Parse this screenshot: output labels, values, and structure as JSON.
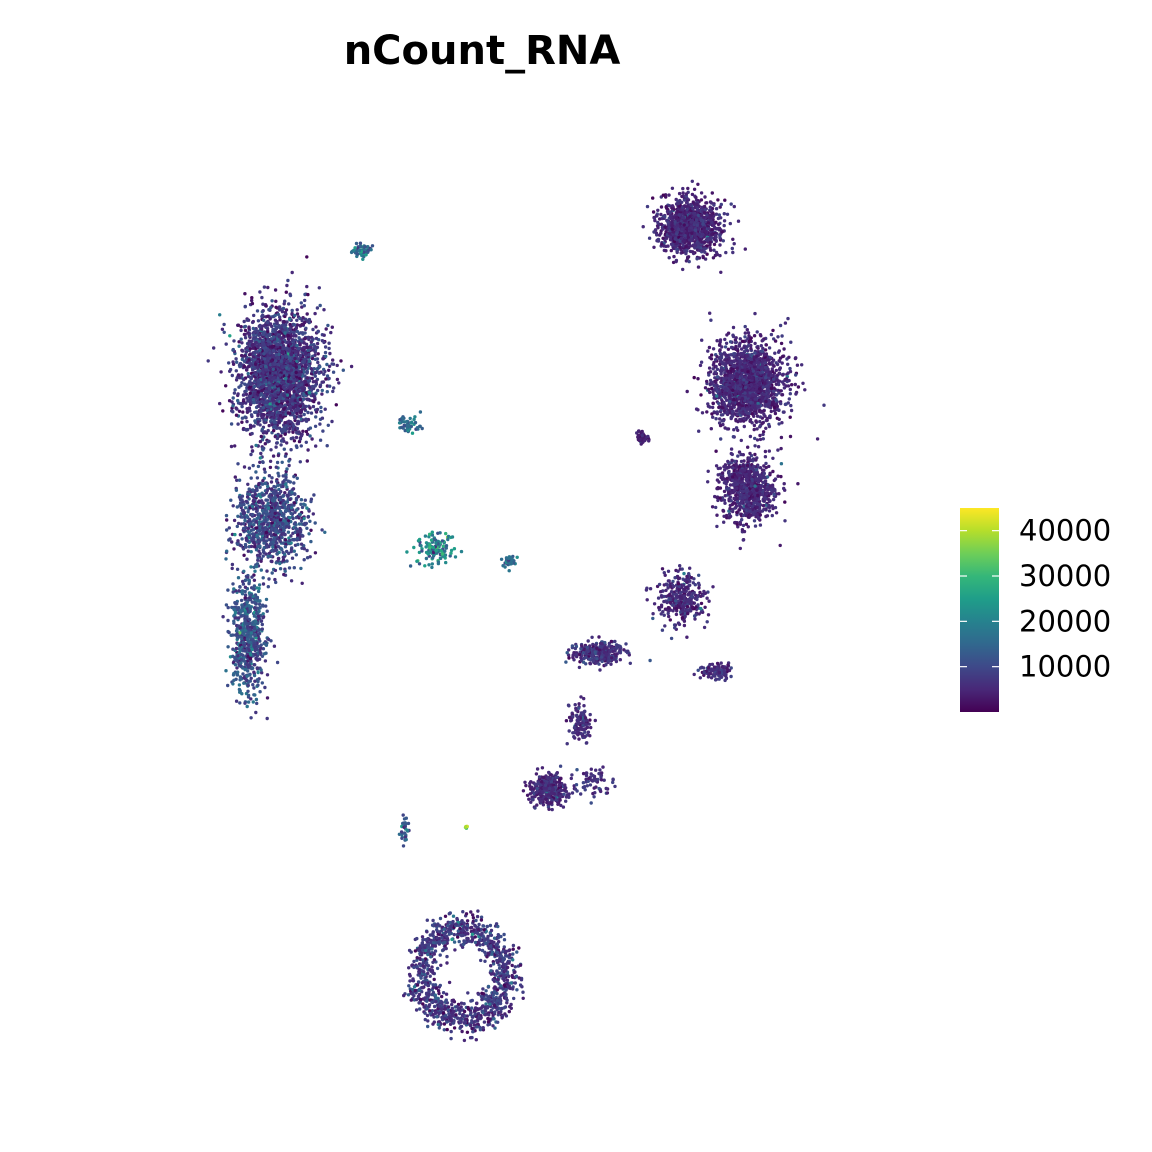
{
  "chart_data": {
    "type": "scatter",
    "title": "nCount_RNA",
    "xlabel": "",
    "ylabel": "",
    "axes_visible": false,
    "grid": false,
    "legend_placement": "right",
    "colorbar": {
      "palette": "viridis",
      "colors": [
        "#440154",
        "#482878",
        "#3e4989",
        "#31688e",
        "#26828e",
        "#1f9e89",
        "#35b779",
        "#6ece58",
        "#b5de2b",
        "#fde725"
      ],
      "range": [
        0,
        45000
      ],
      "ticks": [
        10000,
        20000,
        30000,
        40000
      ],
      "tick_labels": [
        "10000",
        "20000",
        "30000",
        "40000"
      ]
    },
    "xlim": [
      -10,
      10
    ],
    "ylim": [
      -10,
      10
    ],
    "clusters": [
      {
        "id": "left-upper",
        "cx": -5.4,
        "cy": 5.1,
        "sx": 0.95,
        "sy": 1.25,
        "n": 2600,
        "value_mean": 7000,
        "value_sd": 3500
      },
      {
        "id": "left-middle",
        "cx": -5.6,
        "cy": 1.9,
        "sx": 0.8,
        "sy": 0.9,
        "n": 900,
        "value_mean": 9500,
        "value_sd": 4000
      },
      {
        "id": "left-tail",
        "cx": -6.2,
        "cy": -0.6,
        "sx": 0.4,
        "sy": 1.2,
        "n": 650,
        "value_mean": 11500,
        "value_sd": 4000
      },
      {
        "id": "left-top-knob",
        "cx": -3.3,
        "cy": 7.8,
        "sx": 0.25,
        "sy": 0.12,
        "n": 50,
        "value_mean": 15000,
        "value_sd": 4500
      },
      {
        "id": "mid-small-a",
        "cx": -2.1,
        "cy": 4.0,
        "sx": 0.25,
        "sy": 0.2,
        "n": 45,
        "value_mean": 16000,
        "value_sd": 4500
      },
      {
        "id": "mid-small-b",
        "cx": -1.4,
        "cy": 1.3,
        "sx": 0.45,
        "sy": 0.35,
        "n": 130,
        "value_mean": 19500,
        "value_sd": 5500
      },
      {
        "id": "mid-small-c",
        "cx": 0.5,
        "cy": 1.0,
        "sx": 0.15,
        "sy": 0.12,
        "n": 45,
        "value_mean": 15000,
        "value_sd": 3000
      },
      {
        "id": "right-top",
        "cx": 5.1,
        "cy": 8.3,
        "sx": 0.7,
        "sy": 0.55,
        "n": 1150,
        "value_mean": 5000,
        "value_sd": 2200
      },
      {
        "id": "right-middle",
        "cx": 6.6,
        "cy": 4.9,
        "sx": 0.85,
        "sy": 0.8,
        "n": 1700,
        "value_mean": 5000,
        "value_sd": 2200
      },
      {
        "id": "right-lower",
        "cx": 6.6,
        "cy": 2.6,
        "sx": 0.65,
        "sy": 0.65,
        "n": 800,
        "value_mean": 5000,
        "value_sd": 2000
      },
      {
        "id": "right-small-left",
        "cx": 3.9,
        "cy": 3.7,
        "sx": 0.15,
        "sy": 0.1,
        "n": 60,
        "value_mean": 3500,
        "value_sd": 1200
      },
      {
        "id": "right-arm-1",
        "cx": 4.9,
        "cy": 0.2,
        "sx": 0.55,
        "sy": 0.5,
        "n": 320,
        "value_mean": 5500,
        "value_sd": 2200
      },
      {
        "id": "right-arm-2",
        "cx": 2.8,
        "cy": -1.0,
        "sx": 0.6,
        "sy": 0.22,
        "n": 300,
        "value_mean": 6500,
        "value_sd": 2600
      },
      {
        "id": "right-arm-3",
        "cx": 5.8,
        "cy": -1.4,
        "sx": 0.35,
        "sy": 0.15,
        "n": 110,
        "value_mean": 6000,
        "value_sd": 2200
      },
      {
        "id": "right-arm-4",
        "cx": 2.3,
        "cy": -2.5,
        "sx": 0.25,
        "sy": 0.4,
        "n": 120,
        "value_mean": 5500,
        "value_sd": 2200
      },
      {
        "id": "right-bottom-blob",
        "cx": 1.5,
        "cy": -4.0,
        "sx": 0.45,
        "sy": 0.3,
        "n": 360,
        "value_mean": 5500,
        "value_sd": 2200
      },
      {
        "id": "right-bottom-tail",
        "cx": 2.7,
        "cy": -3.8,
        "sx": 0.4,
        "sy": 0.25,
        "n": 60,
        "value_mean": 7000,
        "value_sd": 2600
      },
      {
        "id": "bottom-small",
        "cx": -2.2,
        "cy": -4.9,
        "sx": 0.15,
        "sy": 0.35,
        "n": 30,
        "value_mean": 14000,
        "value_sd": 4000
      },
      {
        "id": "bottom-hot",
        "cx": -0.6,
        "cy": -4.8,
        "sx": 0.03,
        "sy": 0.03,
        "n": 6,
        "value_mean": 38000,
        "value_sd": 3000
      },
      {
        "id": "bottom-ring",
        "cx": -0.7,
        "cy": -8.0,
        "sx": 1.1,
        "sy": 1.0,
        "n": 1100,
        "value_mean": 7500,
        "value_sd": 3500,
        "ring": true
      }
    ]
  }
}
